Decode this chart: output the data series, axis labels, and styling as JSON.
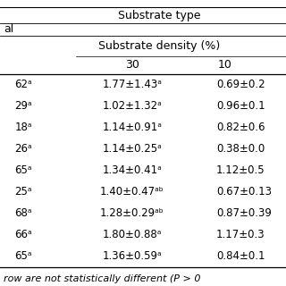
{
  "title": "Substrate type",
  "header1": "al",
  "header2": "Substrate density (%)",
  "col_headers": [
    "30",
    "10"
  ],
  "col1_suffix": [
    "62ᵃ",
    "29ᵃ",
    "18ᵃ",
    "26ᵃ",
    "65ᵃ",
    "25ᵃ",
    "68ᵃ",
    "66ᵃ",
    "65ᵃ"
  ],
  "col2_data": [
    "1.77±1.43ᵃ",
    "1.02±1.32ᵃ",
    "1.14±0.91ᵃ",
    "1.14±0.25ᵃ",
    "1.34±0.41ᵃ",
    "1.40±0.47ᵃᵇ",
    "1.28±0.29ᵃᵇ",
    "1.80±0.88ᵃ",
    "1.36±0.59ᵃ"
  ],
  "col3_data": [
    "0.69±0.2",
    "0.96±0.1",
    "0.82±0.6",
    "0.38±0.0",
    "1.12±0.5",
    "0.67±0.13",
    "0.87±0.39",
    "1.17±0.3",
    "0.84±0.1"
  ],
  "footer": "row are not statistically different (P > 0",
  "bg_color": "#ffffff",
  "text_color": "#000000",
  "line_color": "#000000",
  "font_size": 8.5,
  "header_font_size": 9.0,
  "fig_width": 3.2,
  "fig_height": 3.2,
  "dpi": 100
}
